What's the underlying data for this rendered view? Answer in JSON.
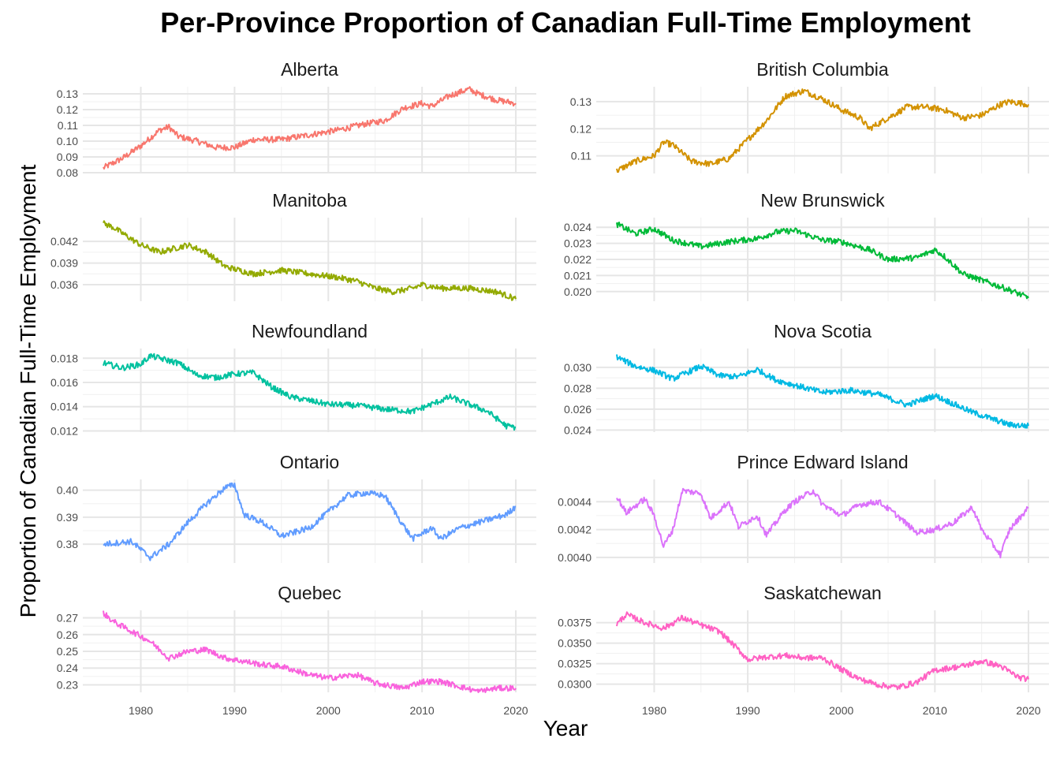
{
  "title": "Per-Province Proportion of Canadian Full-Time Employment",
  "xlabel": "Year",
  "ylabel": "Proportion of Canadian Full-Time Employment",
  "chart_data": {
    "type": "line",
    "title": "Per-Province Proportion of Canadian Full-Time Employment",
    "xlabel": "Year",
    "ylabel": "Proportion of Canadian Full-Time Employment",
    "x_ticks": [
      1980,
      1990,
      2000,
      2010,
      2020
    ],
    "xlim": [
      1976,
      2020
    ],
    "grid": true,
    "legend": "none",
    "layout": "facets in 5 rows x 2 columns, free y scales",
    "panels": [
      {
        "name": "Alberta",
        "color": "#F8766D",
        "y_ticks": [
          "0.08",
          "0.09",
          "0.10",
          "0.11",
          "0.12",
          "0.13"
        ],
        "ylim": [
          0.0795,
          0.1345
        ],
        "decimals": 3,
        "points": [
          [
            1976,
            0.083
          ],
          [
            1978,
            0.089
          ],
          [
            1980,
            0.097
          ],
          [
            1982,
            0.107
          ],
          [
            1983,
            0.109
          ],
          [
            1984,
            0.103
          ],
          [
            1986,
            0.1
          ],
          [
            1988,
            0.096
          ],
          [
            1990,
            0.096
          ],
          [
            1992,
            0.101
          ],
          [
            1995,
            0.101
          ],
          [
            1998,
            0.104
          ],
          [
            2001,
            0.107
          ],
          [
            2004,
            0.111
          ],
          [
            2006,
            0.113
          ],
          [
            2008,
            0.121
          ],
          [
            2010,
            0.124
          ],
          [
            2011,
            0.122
          ],
          [
            2013,
            0.129
          ],
          [
            2015,
            0.133
          ],
          [
            2016,
            0.13
          ],
          [
            2018,
            0.126
          ],
          [
            2020,
            0.124
          ]
        ]
      },
      {
        "name": "British Columbia",
        "color": "#D39200",
        "y_ticks": [
          "0.11",
          "0.12",
          "0.13"
        ],
        "ylim": [
          0.1035,
          0.1355
        ],
        "decimals": 3,
        "points": [
          [
            1976,
            0.1045
          ],
          [
            1978,
            0.108
          ],
          [
            1980,
            0.11
          ],
          [
            1981,
            0.115
          ],
          [
            1982,
            0.114
          ],
          [
            1984,
            0.108
          ],
          [
            1986,
            0.107
          ],
          [
            1988,
            0.109
          ],
          [
            1990,
            0.116
          ],
          [
            1992,
            0.123
          ],
          [
            1994,
            0.132
          ],
          [
            1996,
            0.134
          ],
          [
            1998,
            0.131
          ],
          [
            2000,
            0.127
          ],
          [
            2002,
            0.124
          ],
          [
            2003,
            0.12
          ],
          [
            2005,
            0.124
          ],
          [
            2007,
            0.128
          ],
          [
            2009,
            0.128
          ],
          [
            2011,
            0.127
          ],
          [
            2013,
            0.124
          ],
          [
            2015,
            0.125
          ],
          [
            2017,
            0.129
          ],
          [
            2018,
            0.13
          ],
          [
            2020,
            0.129
          ]
        ]
      },
      {
        "name": "Manitoba",
        "color": "#93AA00",
        "y_ticks": [
          "0.036",
          "0.039",
          "0.042"
        ],
        "ylim": [
          0.0337,
          0.0453
        ],
        "decimals": 4,
        "points": [
          [
            1976,
            0.0445
          ],
          [
            1977,
            0.044
          ],
          [
            1980,
            0.0415
          ],
          [
            1982,
            0.0405
          ],
          [
            1985,
            0.0415
          ],
          [
            1987,
            0.0405
          ],
          [
            1989,
            0.0385
          ],
          [
            1992,
            0.0375
          ],
          [
            1995,
            0.038
          ],
          [
            1998,
            0.0375
          ],
          [
            2001,
            0.037
          ],
          [
            2003,
            0.0365
          ],
          [
            2005,
            0.0355
          ],
          [
            2007,
            0.035
          ],
          [
            2009,
            0.0355
          ],
          [
            2010,
            0.036
          ],
          [
            2012,
            0.0355
          ],
          [
            2015,
            0.0355
          ],
          [
            2018,
            0.035
          ],
          [
            2020,
            0.034
          ]
        ]
      },
      {
        "name": "New Brunswick",
        "color": "#00BA38",
        "y_ticks": [
          "0.020",
          "0.021",
          "0.022",
          "0.023",
          "0.024"
        ],
        "ylim": [
          0.0194,
          0.0246
        ],
        "decimals": 4,
        "points": [
          [
            1976,
            0.0242
          ],
          [
            1978,
            0.0236
          ],
          [
            1980,
            0.0239
          ],
          [
            1982,
            0.0232
          ],
          [
            1985,
            0.0228
          ],
          [
            1988,
            0.0231
          ],
          [
            1991,
            0.0233
          ],
          [
            1993,
            0.0237
          ],
          [
            1995,
            0.0238
          ],
          [
            1998,
            0.0232
          ],
          [
            2000,
            0.0231
          ],
          [
            2003,
            0.0226
          ],
          [
            2005,
            0.022
          ],
          [
            2008,
            0.0221
          ],
          [
            2010,
            0.0226
          ],
          [
            2011,
            0.0222
          ],
          [
            2013,
            0.0211
          ],
          [
            2016,
            0.0205
          ],
          [
            2018,
            0.0201
          ],
          [
            2020,
            0.0196
          ]
        ]
      },
      {
        "name": "Newfoundland",
        "color": "#00C19F",
        "y_ticks": [
          "0.012",
          "0.014",
          "0.016",
          "0.018"
        ],
        "ylim": [
          0.0119,
          0.0188
        ],
        "decimals": 4,
        "points": [
          [
            1976,
            0.0176
          ],
          [
            1978,
            0.0172
          ],
          [
            1980,
            0.0175
          ],
          [
            1981,
            0.0182
          ],
          [
            1984,
            0.0176
          ],
          [
            1986,
            0.0166
          ],
          [
            1988,
            0.0164
          ],
          [
            1990,
            0.0167
          ],
          [
            1992,
            0.0168
          ],
          [
            1994,
            0.0156
          ],
          [
            1996,
            0.0148
          ],
          [
            1998,
            0.0145
          ],
          [
            2000,
            0.0142
          ],
          [
            2003,
            0.0141
          ],
          [
            2006,
            0.0138
          ],
          [
            2009,
            0.0136
          ],
          [
            2011,
            0.0142
          ],
          [
            2013,
            0.0148
          ],
          [
            2015,
            0.0142
          ],
          [
            2017,
            0.0136
          ],
          [
            2019,
            0.0124
          ],
          [
            2020,
            0.0123
          ]
        ]
      },
      {
        "name": "Nova Scotia",
        "color": "#00B9E3",
        "y_ticks": [
          "0.024",
          "0.026",
          "0.028",
          "0.030"
        ],
        "ylim": [
          0.0238,
          0.0318
        ],
        "decimals": 4,
        "points": [
          [
            1976,
            0.031
          ],
          [
            1978,
            0.0301
          ],
          [
            1980,
            0.0297
          ],
          [
            1982,
            0.0289
          ],
          [
            1985,
            0.0301
          ],
          [
            1987,
            0.0292
          ],
          [
            1989,
            0.0291
          ],
          [
            1991,
            0.0298
          ],
          [
            1993,
            0.0288
          ],
          [
            1995,
            0.0283
          ],
          [
            1998,
            0.0276
          ],
          [
            2001,
            0.0278
          ],
          [
            2004,
            0.0274
          ],
          [
            2007,
            0.0264
          ],
          [
            2010,
            0.0273
          ],
          [
            2011,
            0.0269
          ],
          [
            2014,
            0.0257
          ],
          [
            2016,
            0.0251
          ],
          [
            2018,
            0.0245
          ],
          [
            2020,
            0.0244
          ]
        ]
      },
      {
        "name": "Ontario",
        "color": "#619CFF",
        "y_ticks": [
          "0.38",
          "0.39",
          "0.40"
        ],
        "ylim": [
          0.373,
          0.404
        ],
        "decimals": 3,
        "points": [
          [
            1976,
            0.38
          ],
          [
            1979,
            0.381
          ],
          [
            1981,
            0.375
          ],
          [
            1983,
            0.38
          ],
          [
            1985,
            0.388
          ],
          [
            1987,
            0.395
          ],
          [
            1989,
            0.401
          ],
          [
            1990,
            0.402
          ],
          [
            1991,
            0.391
          ],
          [
            1993,
            0.388
          ],
          [
            1995,
            0.383
          ],
          [
            1998,
            0.386
          ],
          [
            2000,
            0.392
          ],
          [
            2002,
            0.398
          ],
          [
            2004,
            0.399
          ],
          [
            2006,
            0.398
          ],
          [
            2008,
            0.387
          ],
          [
            2009,
            0.382
          ],
          [
            2011,
            0.386
          ],
          [
            2012,
            0.382
          ],
          [
            2014,
            0.386
          ],
          [
            2017,
            0.389
          ],
          [
            2019,
            0.391
          ],
          [
            2020,
            0.394
          ]
        ]
      },
      {
        "name": "Prince Edward Island",
        "color": "#DB72FB",
        "y_ticks": [
          "0.0040",
          "0.0042",
          "0.0044"
        ],
        "ylim": [
          0.00396,
          0.00456
        ],
        "decimals": 5,
        "points": [
          [
            1976,
            0.00444
          ],
          [
            1977,
            0.00432
          ],
          [
            1979,
            0.00442
          ],
          [
            1980,
            0.0043
          ],
          [
            1981,
            0.00408
          ],
          [
            1982,
            0.0042
          ],
          [
            1983,
            0.00448
          ],
          [
            1985,
            0.00446
          ],
          [
            1986,
            0.00428
          ],
          [
            1988,
            0.0044
          ],
          [
            1989,
            0.00422
          ],
          [
            1991,
            0.0043
          ],
          [
            1992,
            0.00416
          ],
          [
            1994,
            0.00434
          ],
          [
            1995,
            0.0044
          ],
          [
            1997,
            0.00448
          ],
          [
            1998,
            0.00438
          ],
          [
            2000,
            0.0043
          ],
          [
            2002,
            0.00438
          ],
          [
            2004,
            0.0044
          ],
          [
            2006,
            0.0043
          ],
          [
            2008,
            0.00418
          ],
          [
            2010,
            0.0042
          ],
          [
            2012,
            0.00425
          ],
          [
            2014,
            0.00436
          ],
          [
            2015,
            0.0042
          ],
          [
            2017,
            0.00402
          ],
          [
            2018,
            0.0042
          ],
          [
            2020,
            0.00436
          ]
        ]
      },
      {
        "name": "Quebec",
        "color": "#F962DD",
        "y_ticks": [
          "0.23",
          "0.24",
          "0.25",
          "0.26",
          "0.27"
        ],
        "ylim": [
          0.2255,
          0.2745
        ],
        "decimals": 3,
        "points": [
          [
            1976,
            0.273
          ],
          [
            1977,
            0.268
          ],
          [
            1979,
            0.262
          ],
          [
            1981,
            0.256
          ],
          [
            1983,
            0.246
          ],
          [
            1985,
            0.25
          ],
          [
            1987,
            0.251
          ],
          [
            1989,
            0.246
          ],
          [
            1991,
            0.244
          ],
          [
            1993,
            0.242
          ],
          [
            1995,
            0.241
          ],
          [
            1998,
            0.236
          ],
          [
            2000,
            0.234
          ],
          [
            2003,
            0.236
          ],
          [
            2005,
            0.231
          ],
          [
            2008,
            0.228
          ],
          [
            2010,
            0.232
          ],
          [
            2012,
            0.232
          ],
          [
            2014,
            0.229
          ],
          [
            2016,
            0.226
          ],
          [
            2018,
            0.228
          ],
          [
            2020,
            0.228
          ]
        ]
      },
      {
        "name": "Saskatchewan",
        "color": "#FF61C3",
        "y_ticks": [
          "0.0300",
          "0.0325",
          "0.0350",
          "0.0375"
        ],
        "ylim": [
          0.029,
          0.039
        ],
        "decimals": 4,
        "points": [
          [
            1976,
            0.0373
          ],
          [
            1977,
            0.0385
          ],
          [
            1979,
            0.0375
          ],
          [
            1981,
            0.0368
          ],
          [
            1983,
            0.0381
          ],
          [
            1985,
            0.0372
          ],
          [
            1987,
            0.0364
          ],
          [
            1989,
            0.0342
          ],
          [
            1990,
            0.033
          ],
          [
            1992,
            0.0333
          ],
          [
            1994,
            0.0335
          ],
          [
            1996,
            0.0332
          ],
          [
            1998,
            0.0332
          ],
          [
            2000,
            0.0318
          ],
          [
            2002,
            0.0306
          ],
          [
            2004,
            0.0299
          ],
          [
            2006,
            0.0296
          ],
          [
            2008,
            0.0302
          ],
          [
            2010,
            0.0317
          ],
          [
            2013,
            0.0322
          ],
          [
            2015,
            0.0328
          ],
          [
            2017,
            0.0322
          ],
          [
            2019,
            0.0308
          ],
          [
            2020,
            0.0306
          ]
        ]
      }
    ]
  }
}
